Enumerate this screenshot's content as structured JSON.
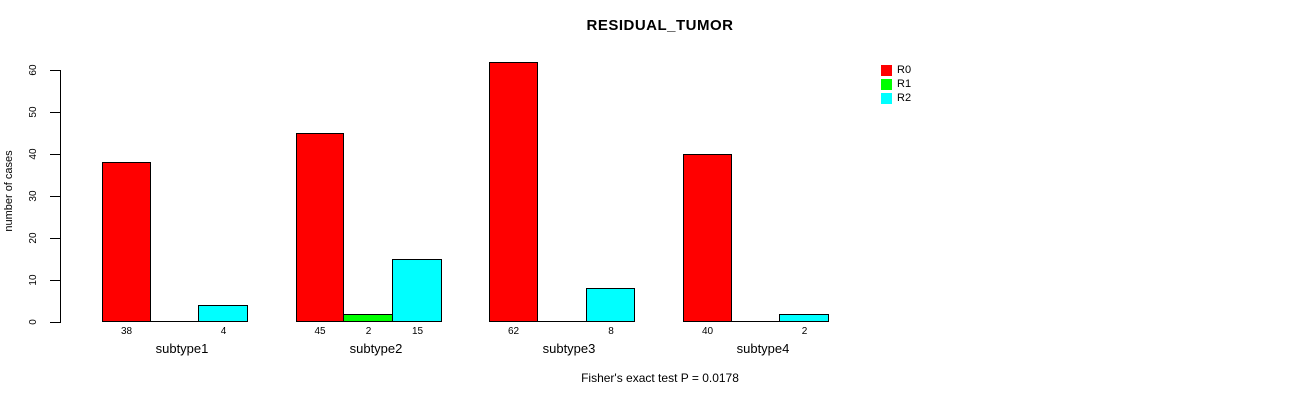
{
  "chart_data": {
    "type": "bar",
    "title": "RESIDUAL_TUMOR",
    "ylabel": "number of cases",
    "xlabel": "",
    "categories": [
      "subtype1",
      "subtype2",
      "subtype3",
      "subtype4"
    ],
    "series": [
      {
        "name": "R0",
        "color": "#ff0000",
        "values": [
          38,
          45,
          62,
          40
        ]
      },
      {
        "name": "R1",
        "color": "#00ff00",
        "values": [
          0,
          2,
          0,
          0
        ]
      },
      {
        "name": "R2",
        "color": "#00ffff",
        "values": [
          4,
          15,
          8,
          2
        ]
      }
    ],
    "bar_value_labels": [
      [
        "38",
        "",
        "4"
      ],
      [
        "45",
        "2",
        "15"
      ],
      [
        "62",
        "",
        "8"
      ],
      [
        "40",
        "",
        "2"
      ]
    ],
    "ylim": [
      0,
      62
    ],
    "yticks": [
      0,
      10,
      20,
      30,
      40,
      50,
      60
    ],
    "grid": false,
    "legend_position": "right",
    "legend_entries": [
      "R0",
      "R1",
      "R2"
    ],
    "footnote": "Fisher's exact test P = 0.0178",
    "axis_color": "#000000",
    "background_color": "#ffffff"
  }
}
